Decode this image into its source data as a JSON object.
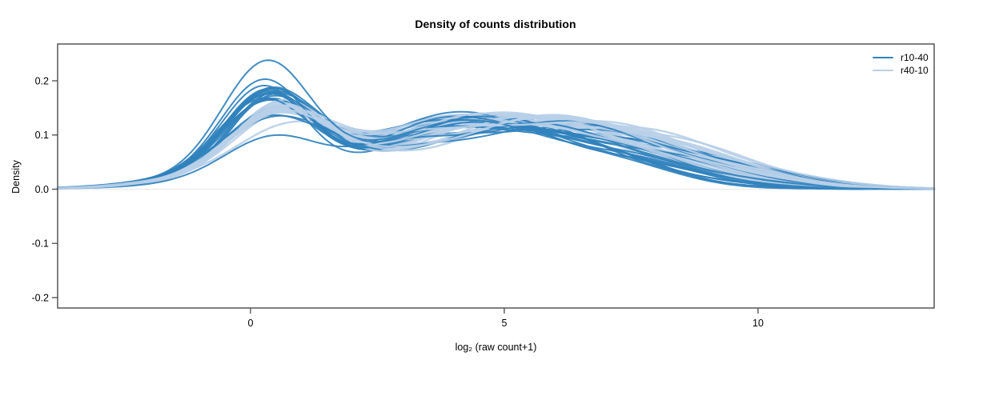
{
  "chart_data": {
    "type": "line",
    "title": "Density of counts distribution",
    "xlabel": "log₂ (raw count+1)",
    "ylabel": "Density",
    "xlim": [
      -3.8,
      13.47
    ],
    "ylim": [
      -0.2192,
      0.2679
    ],
    "grid": false,
    "zero_line_color": "#ececec",
    "axis_color": "#4a4a4a",
    "x_ticks": [
      {
        "v": 0,
        "label": "0"
      },
      {
        "v": 5,
        "label": "5"
      },
      {
        "v": 10,
        "label": "10"
      }
    ],
    "y_ticks": [
      {
        "v": -0.2,
        "label": "-0.2"
      },
      {
        "v": -0.1,
        "label": "-0.1"
      },
      {
        "v": 0.0,
        "label": "0.0"
      },
      {
        "v": 0.1,
        "label": "0.1"
      },
      {
        "v": 0.2,
        "label": "0.2"
      }
    ],
    "legend": {
      "position": "top-right",
      "entries": [
        {
          "name": "r10-40",
          "color": "#3182bd"
        },
        {
          "name": "r40-10",
          "color": "#b8cfe8"
        }
      ]
    },
    "series_styles": {
      "d": {
        "name": "r10-40",
        "color": "#3182bd",
        "width": 2.0,
        "opacity": 0.92
      },
      "l": {
        "name": "r40-10",
        "color": "#b8cfe8",
        "width": 2.5,
        "opacity": 0.9
      }
    },
    "curve_model": "density(x)=sum of 4 gaussians [a,m,s]*3 plus wiggle a14*sin(1.6x+a15)*exp(-((x-4.5)/3)^2/2)",
    "curves": [
      {
        "g": "d",
        "p": [
          0.03,
          0.2,
          1.6,
          0.135,
          0.35,
          0.88,
          0.125,
          4.2,
          2.0,
          0.028,
          7.6,
          1.5,
          0.008,
          0.4
        ]
      },
      {
        "g": "l",
        "p": [
          0.03,
          0.3,
          1.8,
          0.1,
          0.55,
          0.95,
          0.12,
          4.8,
          2.2,
          0.042,
          7.8,
          1.8,
          0.008,
          0.6
        ]
      },
      {
        "g": "d",
        "p": [
          0.026,
          0.0,
          1.8,
          0.128,
          0.4,
          0.9,
          0.118,
          4.8,
          2.2,
          0.035,
          8.2,
          1.7,
          0.009,
          3.1
        ]
      },
      {
        "g": "l",
        "p": [
          0.028,
          0.4,
          1.7,
          0.112,
          0.6,
          0.9,
          0.112,
          5.2,
          2.3,
          0.046,
          8.0,
          1.8,
          0.01,
          1.8
        ]
      },
      {
        "g": "d",
        "p": [
          0.032,
          0.1,
          1.6,
          0.122,
          0.3,
          0.85,
          0.135,
          4.4,
          1.9,
          0.025,
          7.5,
          1.5,
          0.007,
          4.4
        ]
      },
      {
        "g": "l",
        "p": [
          0.032,
          0.2,
          1.8,
          0.092,
          0.5,
          1.0,
          0.128,
          4.6,
          2.1,
          0.038,
          7.5,
          1.7,
          0.007,
          2.9
        ]
      },
      {
        "g": "d",
        "p": [
          0.028,
          0.2,
          1.7,
          0.14,
          0.45,
          0.8,
          0.108,
          5.0,
          2.2,
          0.04,
          8.4,
          1.8,
          0.01,
          5.6
        ]
      },
      {
        "g": "l",
        "p": [
          0.027,
          0.3,
          1.9,
          0.106,
          0.65,
          0.92,
          0.115,
          5.0,
          2.2,
          0.044,
          8.2,
          1.8,
          0.009,
          4.2
        ]
      },
      {
        "g": "d",
        "p": [
          0.03,
          0.0,
          1.7,
          0.118,
          0.35,
          0.92,
          0.122,
          4.6,
          2.1,
          0.03,
          7.9,
          1.6,
          0.006,
          1.9
        ]
      },
      {
        "g": "l",
        "p": [
          0.03,
          0.4,
          1.7,
          0.118,
          0.52,
          0.88,
          0.108,
          5.4,
          2.4,
          0.047,
          8.4,
          1.8,
          0.011,
          5.3
        ]
      },
      {
        "g": "d",
        "p": [
          0.027,
          0.1,
          1.8,
          0.132,
          0.28,
          0.84,
          0.115,
          4.9,
          2.3,
          0.036,
          8.5,
          1.8,
          0.011,
          0.9
        ]
      },
      {
        "g": "l",
        "p": [
          0.029,
          0.2,
          1.8,
          0.096,
          0.58,
          0.98,
          0.124,
          4.7,
          2.1,
          0.04,
          7.6,
          1.7,
          0.006,
          0.1
        ]
      },
      {
        "g": "d",
        "p": [
          0.031,
          0.2,
          1.6,
          0.125,
          0.5,
          0.86,
          0.128,
          4.3,
          2.0,
          0.024,
          7.4,
          1.4,
          0.008,
          2.2
        ]
      },
      {
        "g": "l",
        "p": [
          0.031,
          0.3,
          1.7,
          0.109,
          0.62,
          0.91,
          0.118,
          5.1,
          2.2,
          0.043,
          8.1,
          1.8,
          0.008,
          1.4
        ]
      },
      {
        "g": "d",
        "p": [
          0.029,
          0.0,
          1.7,
          0.145,
          0.32,
          0.83,
          0.105,
          5.2,
          2.3,
          0.042,
          8.6,
          1.9,
          0.009,
          3.8
        ]
      },
      {
        "g": "l",
        "p": [
          0.026,
          0.4,
          1.9,
          0.102,
          0.54,
          0.96,
          0.121,
          4.9,
          2.2,
          0.041,
          7.9,
          1.8,
          0.01,
          2.6
        ]
      },
      {
        "g": "d",
        "p": [
          0.025,
          0.1,
          1.8,
          0.095,
          0.42,
          0.95,
          0.125,
          4.5,
          2.0,
          0.028,
          7.7,
          1.5,
          0.007,
          5.1
        ]
      },
      {
        "g": "l",
        "p": [
          0.03,
          0.2,
          1.7,
          0.115,
          0.57,
          0.89,
          0.11,
          5.3,
          2.3,
          0.046,
          8.3,
          1.8,
          0.007,
          3.9
        ]
      },
      {
        "g": "d",
        "p": [
          0.03,
          0.2,
          1.6,
          0.138,
          0.38,
          0.86,
          0.118,
          4.7,
          2.1,
          0.033,
          8.1,
          1.7,
          0.01,
          0.2
        ]
      },
      {
        "g": "l",
        "p": [
          0.028,
          0.3,
          1.8,
          0.075,
          0.66,
          0.99,
          0.126,
          4.5,
          2.0,
          0.036,
          7.4,
          1.6,
          0.009,
          5.0
        ]
      },
      {
        "g": "d",
        "p": [
          0.028,
          0.0,
          1.7,
          0.12,
          0.33,
          0.9,
          0.134,
          4.2,
          1.9,
          0.022,
          7.3,
          1.4,
          0.006,
          1.5
        ]
      },
      {
        "g": "l",
        "p": [
          0.032,
          0.4,
          1.7,
          0.107,
          0.51,
          0.93,
          0.116,
          5.0,
          2.2,
          0.043,
          8.0,
          1.8,
          0.011,
          0.3
        ]
      },
      {
        "g": "d",
        "p": [
          0.032,
          0.1,
          1.6,
          0.15,
          0.27,
          0.8,
          0.11,
          5.1,
          2.2,
          0.038,
          8.3,
          1.8,
          0.012,
          2.8
        ]
      },
      {
        "g": "l",
        "p": [
          0.027,
          0.2,
          1.8,
          0.113,
          0.63,
          0.9,
          0.113,
          5.2,
          2.3,
          0.045,
          8.2,
          1.8,
          0.006,
          1.6
        ]
      },
      {
        "g": "d",
        "p": [
          0.026,
          0.2,
          1.8,
          0.112,
          0.48,
          0.94,
          0.12,
          4.6,
          2.1,
          0.03,
          7.8,
          1.6,
          0.008,
          4.0
        ]
      },
      {
        "g": "l",
        "p": [
          0.03,
          0.3,
          1.7,
          0.098,
          0.56,
          0.97,
          0.123,
          4.6,
          2.1,
          0.039,
          7.7,
          1.7,
          0.008,
          2.7
        ]
      },
      {
        "g": "d",
        "p": [
          0.029,
          0.0,
          1.7,
          0.142,
          0.36,
          0.84,
          0.115,
          4.4,
          2.0,
          0.027,
          7.6,
          1.5,
          0.007,
          5.9
        ]
      },
      {
        "g": "l",
        "p": [
          0.029,
          0.4,
          1.8,
          0.11,
          0.59,
          0.92,
          0.117,
          5.1,
          2.2,
          0.042,
          8.1,
          1.8,
          0.01,
          4.1
        ]
      },
      {
        "g": "d",
        "p": [
          0.031,
          0.1,
          1.6,
          0.126,
          0.31,
          0.88,
          0.124,
          4.8,
          2.2,
          0.034,
          8.2,
          1.7,
          0.009,
          1.1
        ]
      },
      {
        "g": "l",
        "p": [
          0.031,
          0.2,
          1.7,
          0.104,
          0.53,
          0.94,
          0.12,
          4.8,
          2.1,
          0.04,
          7.8,
          1.7,
          0.007,
          5.4
        ]
      },
      {
        "g": "d",
        "p": [
          0.027,
          0.2,
          1.7,
          0.134,
          0.44,
          0.82,
          0.112,
          5.0,
          2.3,
          0.041,
          8.7,
          1.9,
          0.011,
          2.0
        ]
      },
      {
        "g": "l",
        "p": [
          0.026,
          0.3,
          1.9,
          0.118,
          0.61,
          0.88,
          0.109,
          5.3,
          2.4,
          0.048,
          8.5,
          1.85,
          0.012,
          0.8
        ]
      },
      {
        "g": "d",
        "p": [
          0.03,
          0.0,
          1.8,
          0.09,
          0.37,
          0.93,
          0.127,
          4.3,
          2.0,
          0.026,
          7.5,
          1.5,
          0.006,
          3.3
        ]
      },
      {
        "g": "l",
        "p": [
          0.03,
          0.4,
          1.7,
          0.095,
          0.64,
          1.0,
          0.127,
          4.5,
          2.0,
          0.037,
          7.5,
          1.6,
          0.009,
          2.1
        ]
      },
      {
        "g": "d",
        "p": [
          0.028,
          0.1,
          1.6,
          0.148,
          0.29,
          0.81,
          0.108,
          4.9,
          2.2,
          0.037,
          8.4,
          1.8,
          0.01,
          4.7
        ]
      },
      {
        "g": "l",
        "p": [
          0.028,
          0.2,
          1.8,
          0.108,
          0.55,
          0.91,
          0.119,
          5.0,
          2.2,
          0.043,
          8.0,
          1.8,
          0.006,
          3.4
        ]
      },
      {
        "g": "d",
        "p": [
          0.032,
          0.2,
          1.7,
          0.122,
          0.41,
          0.89,
          0.121,
          4.5,
          2.0,
          0.029,
          7.7,
          1.6,
          0.008,
          0.7
        ]
      },
      {
        "g": "l",
        "p": [
          0.032,
          0.3,
          1.7,
          0.101,
          0.6,
          0.95,
          0.122,
          4.7,
          2.1,
          0.039,
          7.7,
          1.7,
          0.008,
          4.6
        ]
      },
      {
        "g": "d",
        "p": [
          0.026,
          0.0,
          1.7,
          0.136,
          0.34,
          0.85,
          0.117,
          4.7,
          2.1,
          0.031,
          8.0,
          1.6,
          0.007,
          1.7
        ]
      },
      {
        "g": "l",
        "p": [
          0.027,
          0.4,
          1.8,
          0.114,
          0.52,
          0.9,
          0.111,
          5.2,
          2.3,
          0.046,
          8.3,
          1.85,
          0.01,
          5.8
        ]
      },
      {
        "g": "d",
        "p": [
          0.02,
          0.1,
          1.6,
          0.065,
          0.46,
          0.91,
          0.129,
          4.4,
          1.9,
          0.023,
          7.4,
          1.5,
          0.009,
          2.4
        ]
      },
      {
        "g": "l",
        "p": [
          0.03,
          0.2,
          1.7,
          0.097,
          0.58,
          0.98,
          0.125,
          4.6,
          2.0,
          0.037,
          7.6,
          1.7,
          0.007,
          1.0
        ]
      },
      {
        "g": "d",
        "p": [
          0.029,
          0.2,
          1.8,
          0.13,
          0.26,
          0.87,
          0.113,
          5.1,
          2.3,
          0.039,
          8.5,
          1.8,
          0.011,
          3.6
        ]
      },
      {
        "g": "l",
        "p": [
          0.029,
          0.3,
          1.8,
          0.111,
          0.62,
          0.92,
          0.114,
          5.1,
          2.2,
          0.044,
          8.1,
          1.8,
          0.009,
          2.3
        ]
      },
      {
        "g": "d",
        "p": [
          0.028,
          0.1,
          1.7,
          0.16,
          0.25,
          0.82,
          0.112,
          4.5,
          2.1,
          0.032,
          8.0,
          1.7,
          0.007,
          2.5
        ]
      },
      {
        "g": "l",
        "p": [
          0.031,
          0.4,
          1.7,
          0.103,
          0.54,
          0.94,
          0.121,
          4.9,
          2.2,
          0.041,
          7.9,
          1.8,
          0.011,
          3.5
        ]
      },
      {
        "g": "d",
        "p": [
          0.03,
          0.0,
          1.7,
          0.19,
          0.3,
          0.85,
          0.118,
          4.3,
          2.0,
          0.03,
          7.8,
          1.6,
          0.006,
          1.2
        ]
      },
      {
        "g": "l",
        "p": [
          0.028,
          0.2,
          1.8,
          0.115,
          0.57,
          0.89,
          0.112,
          5.3,
          2.3,
          0.043,
          8.2,
          1.8,
          0.008,
          4.8
        ]
      }
    ]
  }
}
